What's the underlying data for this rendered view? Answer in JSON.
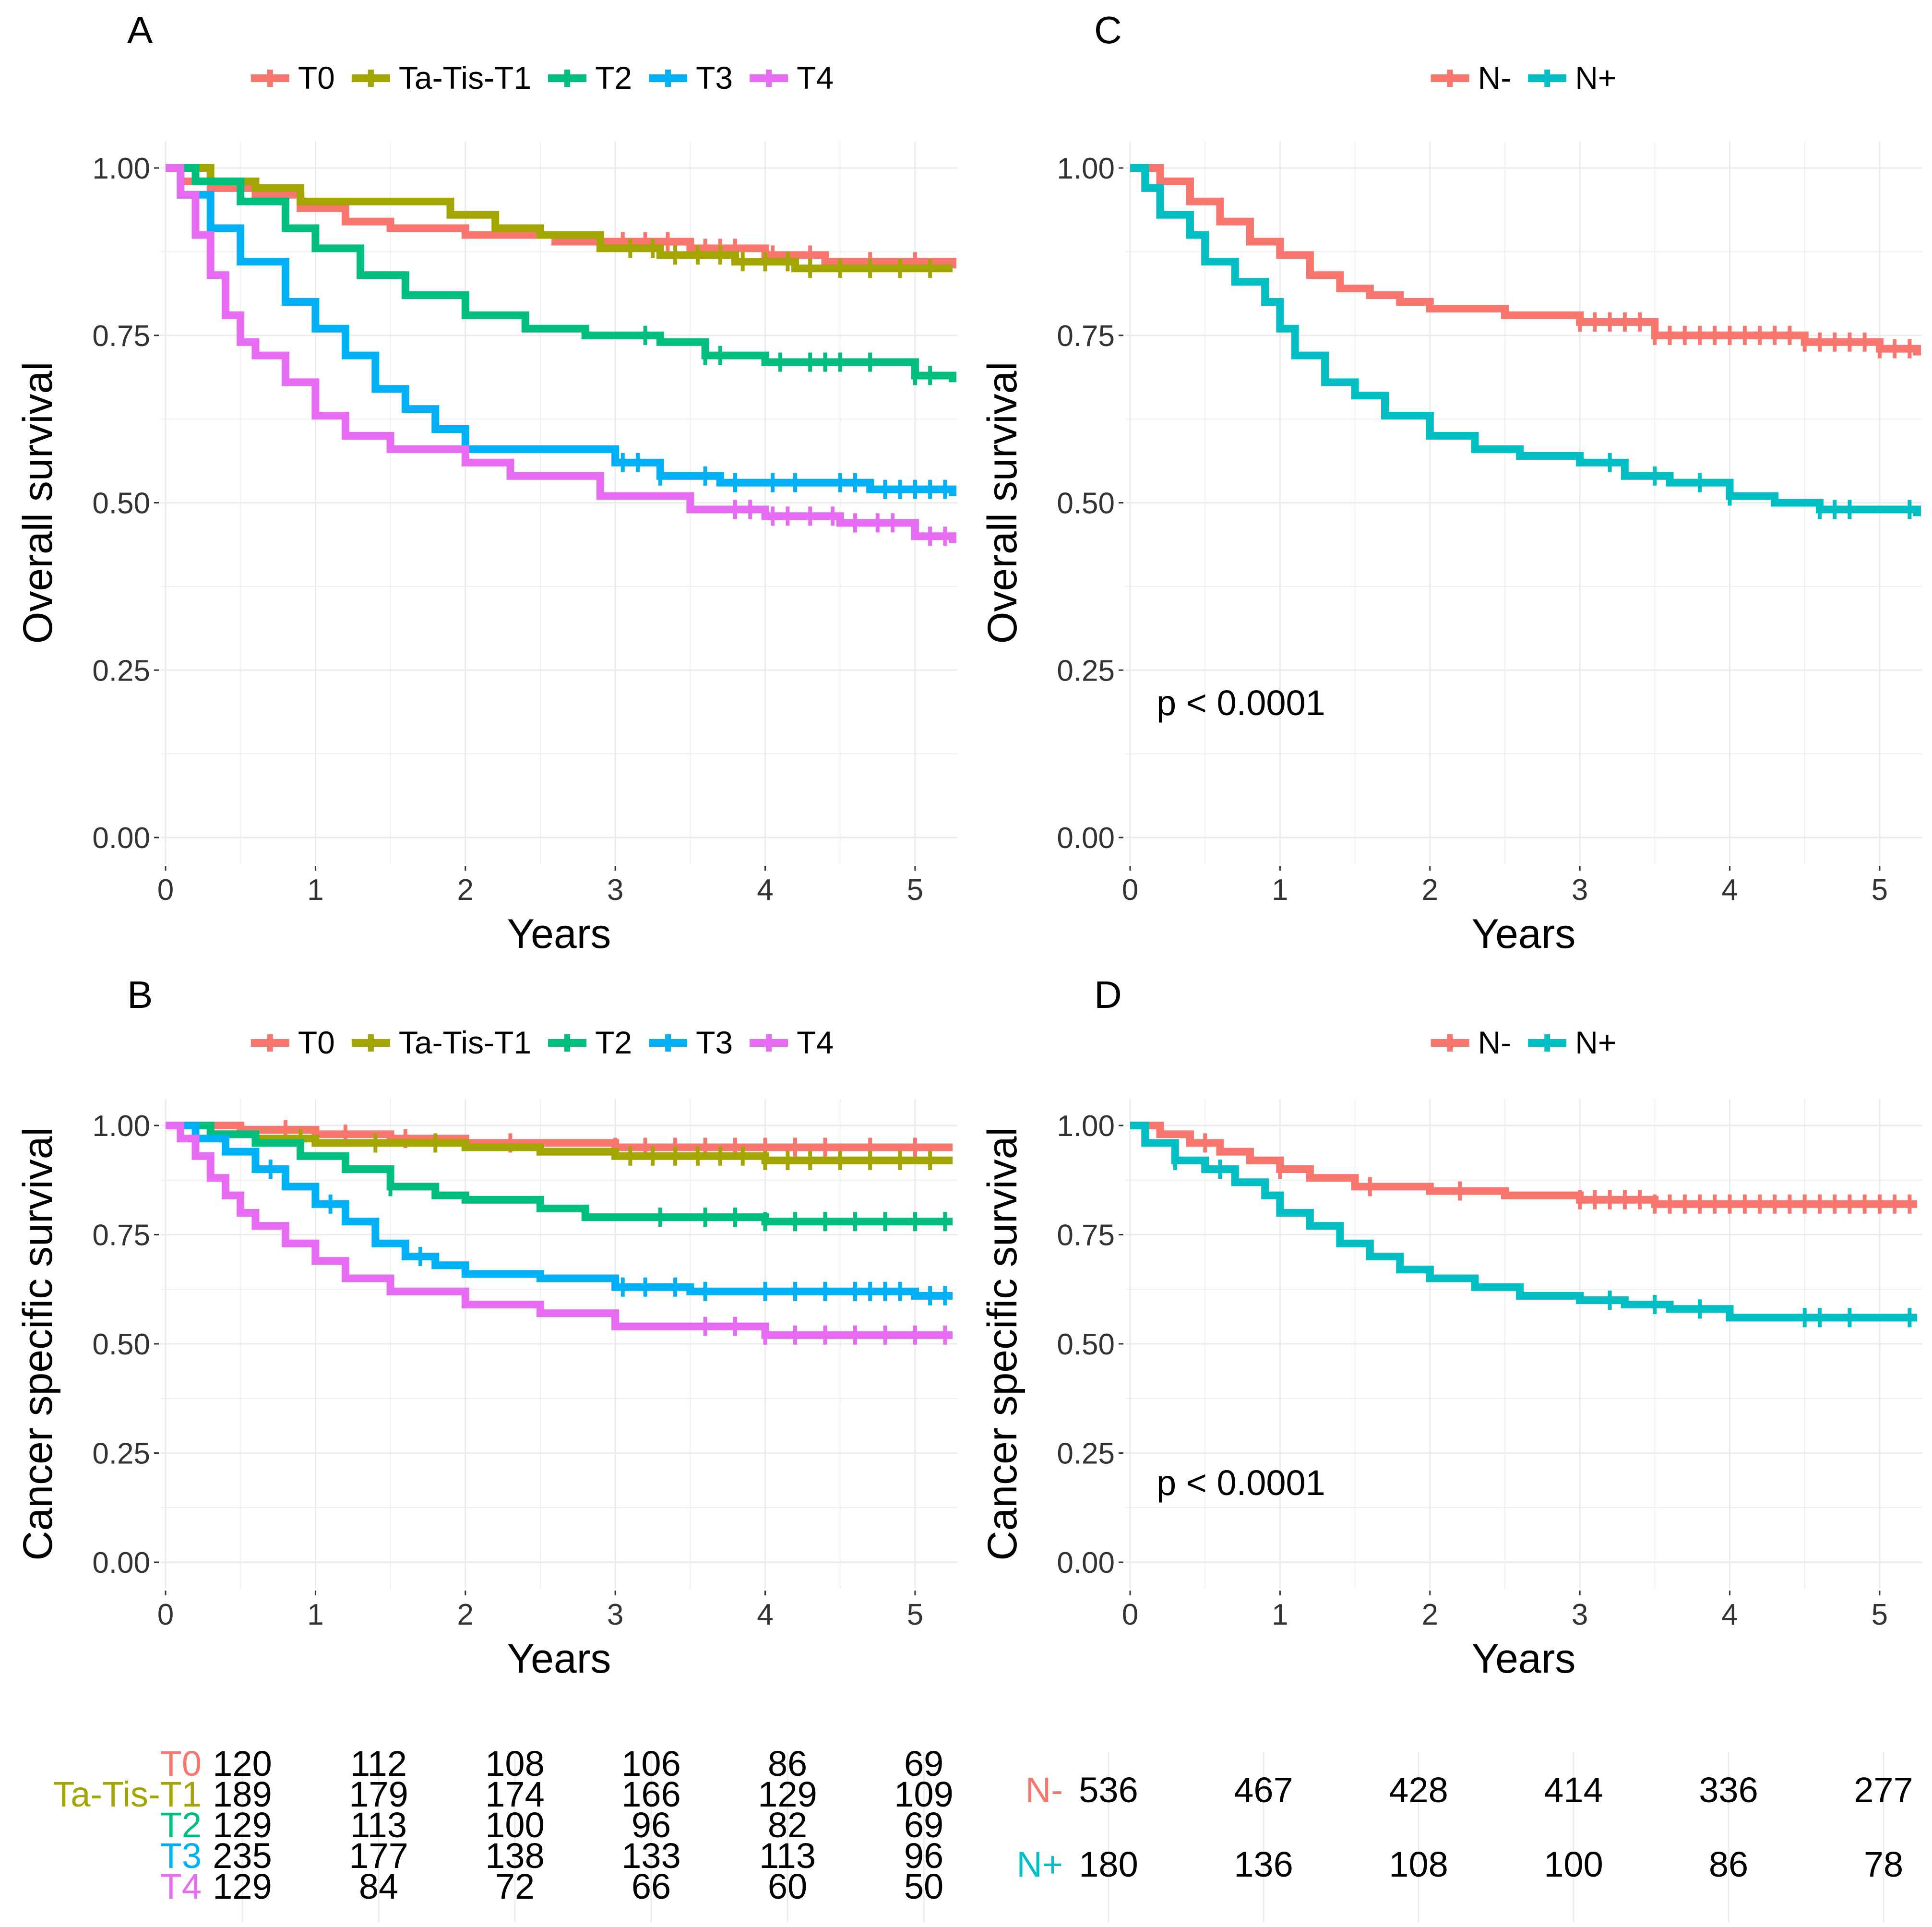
{
  "colors": {
    "T0": "#F8766D",
    "Ta-Tis-T1": "#A3A500",
    "T2": "#00BF7D",
    "T3": "#00B0F6",
    "T4": "#E76BF3",
    "N-": "#F8766D",
    "N+": "#00BFC4",
    "grid": "#EBEBEB",
    "text": "#000000",
    "axis_text": "#333333"
  },
  "chart_data": [
    {
      "id": "A",
      "panel_label": "A",
      "type": "line",
      "subtype": "kaplan-meier",
      "xlabel": "Years",
      "ylabel": "Overall survival",
      "xlim": [
        0,
        5.25
      ],
      "ylim": [
        0,
        1
      ],
      "xticks": [
        "0",
        "1",
        "2",
        "3",
        "4",
        "5"
      ],
      "yticks": [
        "0.00",
        "0.25",
        "0.50",
        "0.75",
        "1.00"
      ],
      "legend": {
        "position": "top",
        "labels": [
          "T0",
          "Ta-Tis-T1",
          "T2",
          "T3",
          "T4"
        ]
      },
      "annotation": "",
      "series": [
        {
          "name": "T0",
          "color": "#F8766D",
          "x": [
            0,
            0.1,
            0.3,
            0.6,
            0.9,
            1.2,
            1.5,
            2.0,
            2.6,
            3.0,
            3.5,
            4.0,
            4.4,
            5.25
          ],
          "y": [
            1.0,
            0.98,
            0.97,
            0.96,
            0.94,
            0.92,
            0.91,
            0.9,
            0.89,
            0.89,
            0.88,
            0.87,
            0.86,
            0.85
          ],
          "censor_x": [
            3.05,
            3.2,
            3.35,
            3.5,
            3.6,
            3.7,
            3.8,
            4.05,
            4.3,
            4.7,
            5.0
          ]
        },
        {
          "name": "Ta-Tis-T1",
          "color": "#A3A500",
          "x": [
            0,
            0.3,
            0.6,
            0.9,
            1.5,
            1.9,
            2.2,
            2.5,
            2.9,
            3.3,
            3.8,
            4.2,
            4.6,
            5.25
          ],
          "y": [
            1.0,
            0.98,
            0.97,
            0.95,
            0.95,
            0.93,
            0.91,
            0.9,
            0.88,
            0.87,
            0.86,
            0.85,
            0.85,
            0.85
          ],
          "censor_x": [
            3.1,
            3.25,
            3.4,
            3.55,
            3.7,
            3.85,
            4.0,
            4.15,
            4.3,
            4.5,
            4.7,
            4.9,
            5.1
          ]
        },
        {
          "name": "T2",
          "color": "#00BF7D",
          "x": [
            0,
            0.2,
            0.5,
            0.8,
            1.0,
            1.3,
            1.6,
            2.0,
            2.4,
            2.8,
            3.3,
            3.6,
            4.0,
            4.5,
            5.0,
            5.25
          ],
          "y": [
            1.0,
            0.98,
            0.95,
            0.91,
            0.88,
            0.84,
            0.81,
            0.78,
            0.76,
            0.75,
            0.74,
            0.72,
            0.71,
            0.71,
            0.69,
            0.68
          ],
          "censor_x": [
            3.2,
            3.6,
            3.7,
            4.1,
            4.3,
            4.4,
            4.5,
            4.7,
            5.0,
            5.1
          ]
        },
        {
          "name": "T3",
          "color": "#00B0F6",
          "x": [
            0,
            0.1,
            0.3,
            0.5,
            0.8,
            1.0,
            1.2,
            1.4,
            1.6,
            1.8,
            2.0,
            2.5,
            3.0,
            3.3,
            3.7,
            4.2,
            4.7,
            5.25
          ],
          "y": [
            1.0,
            0.96,
            0.91,
            0.86,
            0.8,
            0.76,
            0.72,
            0.67,
            0.64,
            0.61,
            0.58,
            0.58,
            0.56,
            0.54,
            0.53,
            0.53,
            0.52,
            0.51
          ],
          "censor_x": [
            3.05,
            3.15,
            3.3,
            3.6,
            3.8,
            4.05,
            4.2,
            4.5,
            4.6,
            4.8,
            4.9,
            5.0,
            5.1,
            5.2
          ]
        },
        {
          "name": "T4",
          "color": "#E76BF3",
          "x": [
            0,
            0.1,
            0.2,
            0.3,
            0.4,
            0.5,
            0.6,
            0.8,
            1.0,
            1.2,
            1.5,
            2.0,
            2.3,
            2.9,
            3.5,
            4.0,
            4.5,
            5.0,
            5.25
          ],
          "y": [
            1.0,
            0.96,
            0.9,
            0.84,
            0.78,
            0.74,
            0.72,
            0.68,
            0.63,
            0.6,
            0.58,
            0.56,
            0.54,
            0.51,
            0.49,
            0.48,
            0.47,
            0.45,
            0.44
          ],
          "censor_x": [
            3.8,
            3.9,
            4.05,
            4.15,
            4.3,
            4.45,
            4.6,
            4.75,
            4.85,
            5.1,
            5.2
          ]
        }
      ]
    },
    {
      "id": "C",
      "panel_label": "C",
      "type": "line",
      "subtype": "kaplan-meier",
      "xlabel": "Years",
      "ylabel": "Overall survival",
      "xlim": [
        0,
        5.25
      ],
      "ylim": [
        0,
        1
      ],
      "xticks": [
        "0",
        "1",
        "2",
        "3",
        "4",
        "5"
      ],
      "yticks": [
        "0.00",
        "0.25",
        "0.50",
        "0.75",
        "1.00"
      ],
      "legend": {
        "position": "top",
        "labels": [
          "N-",
          "N+"
        ]
      },
      "annotation": "p < 0.0001",
      "series": [
        {
          "name": "N-",
          "color": "#F8766D",
          "x": [
            0,
            0.2,
            0.4,
            0.6,
            0.8,
            1.0,
            1.2,
            1.4,
            1.6,
            1.8,
            2.0,
            2.5,
            3.0,
            3.5,
            4.0,
            4.5,
            5.0,
            5.25
          ],
          "y": [
            1.0,
            0.98,
            0.95,
            0.92,
            0.89,
            0.87,
            0.84,
            0.82,
            0.81,
            0.8,
            0.79,
            0.78,
            0.77,
            0.75,
            0.75,
            0.74,
            0.73,
            0.72
          ],
          "censor_x": [
            3.0,
            3.1,
            3.2,
            3.3,
            3.4,
            3.5,
            3.6,
            3.7,
            3.8,
            3.9,
            4.0,
            4.1,
            4.2,
            4.3,
            4.4,
            4.5,
            4.6,
            4.7,
            4.8,
            4.9,
            5.0,
            5.1,
            5.2
          ]
        },
        {
          "name": "N+",
          "color": "#00BFC4",
          "x": [
            0,
            0.1,
            0.2,
            0.4,
            0.5,
            0.7,
            0.9,
            1.0,
            1.1,
            1.3,
            1.5,
            1.7,
            2.0,
            2.3,
            2.6,
            3.0,
            3.3,
            3.6,
            4.0,
            4.3,
            4.6,
            5.0,
            5.25
          ],
          "y": [
            1.0,
            0.97,
            0.93,
            0.9,
            0.86,
            0.83,
            0.8,
            0.76,
            0.72,
            0.68,
            0.66,
            0.63,
            0.6,
            0.58,
            0.57,
            0.56,
            0.54,
            0.53,
            0.51,
            0.5,
            0.49,
            0.49,
            0.48
          ],
          "censor_x": [
            3.2,
            3.5,
            3.8,
            4.0,
            4.6,
            4.7,
            4.8,
            5.2
          ]
        }
      ]
    },
    {
      "id": "B",
      "panel_label": "B",
      "type": "line",
      "subtype": "kaplan-meier",
      "xlabel": "Years",
      "ylabel": "Cancer specific survival",
      "xlim": [
        0,
        5.25
      ],
      "ylim": [
        0,
        1
      ],
      "xticks": [
        "0",
        "1",
        "2",
        "3",
        "4",
        "5"
      ],
      "yticks": [
        "0.00",
        "0.25",
        "0.50",
        "0.75",
        "1.00"
      ],
      "legend": {
        "position": "top",
        "labels": [
          "T0",
          "Ta-Tis-T1",
          "T2",
          "T3",
          "T4"
        ]
      },
      "annotation": "",
      "series": [
        {
          "name": "T0",
          "color": "#F8766D",
          "x": [
            0,
            0.5,
            1.0,
            1.5,
            2.0,
            2.5,
            3.0,
            4.0,
            5.25
          ],
          "y": [
            1.0,
            0.99,
            0.98,
            0.97,
            0.96,
            0.96,
            0.95,
            0.95,
            0.95
          ],
          "censor_x": [
            0.8,
            1.2,
            1.6,
            2.3,
            3.0,
            3.2,
            3.4,
            3.6,
            3.8,
            4.0,
            4.2,
            4.4,
            4.7,
            5.0
          ]
        },
        {
          "name": "Ta-Tis-T1",
          "color": "#A3A500",
          "x": [
            0,
            0.3,
            0.6,
            1.0,
            1.5,
            2.0,
            2.5,
            3.0,
            3.5,
            4.0,
            4.5,
            5.25
          ],
          "y": [
            1.0,
            0.98,
            0.97,
            0.96,
            0.96,
            0.95,
            0.94,
            0.93,
            0.93,
            0.92,
            0.92,
            0.92
          ],
          "censor_x": [
            0.9,
            1.4,
            1.8,
            3.1,
            3.25,
            3.4,
            3.55,
            3.7,
            3.85,
            4.0,
            4.15,
            4.3,
            4.5,
            4.7,
            4.9,
            5.1
          ]
        },
        {
          "name": "T2",
          "color": "#00BF7D",
          "x": [
            0,
            0.3,
            0.6,
            0.9,
            1.2,
            1.5,
            1.8,
            2.0,
            2.5,
            2.8,
            3.0,
            4.0,
            5.25
          ],
          "y": [
            1.0,
            0.98,
            0.96,
            0.93,
            0.9,
            0.86,
            0.84,
            0.83,
            0.81,
            0.79,
            0.79,
            0.78,
            0.78
          ],
          "censor_x": [
            1.5,
            3.3,
            3.6,
            3.8,
            4.0,
            4.2,
            4.4,
            4.6,
            4.8,
            5.0,
            5.2
          ]
        },
        {
          "name": "T3",
          "color": "#00B0F6",
          "x": [
            0,
            0.2,
            0.4,
            0.6,
            0.8,
            1.0,
            1.2,
            1.4,
            1.6,
            1.8,
            2.0,
            2.5,
            3.0,
            3.5,
            4.0,
            5.0,
            5.25
          ],
          "y": [
            1.0,
            0.97,
            0.94,
            0.9,
            0.86,
            0.82,
            0.78,
            0.73,
            0.7,
            0.68,
            0.66,
            0.65,
            0.63,
            0.62,
            0.62,
            0.61,
            0.61
          ],
          "censor_x": [
            0.7,
            1.1,
            1.7,
            3.05,
            3.2,
            3.4,
            3.6,
            4.0,
            4.2,
            4.4,
            4.6,
            4.7,
            4.8,
            4.9,
            5.1,
            5.2
          ]
        },
        {
          "name": "T4",
          "color": "#E76BF3",
          "x": [
            0,
            0.1,
            0.2,
            0.3,
            0.4,
            0.5,
            0.6,
            0.8,
            1.0,
            1.2,
            1.5,
            2.0,
            2.5,
            3.0,
            4.0,
            5.25
          ],
          "y": [
            1.0,
            0.97,
            0.93,
            0.88,
            0.84,
            0.8,
            0.77,
            0.73,
            0.69,
            0.65,
            0.62,
            0.59,
            0.57,
            0.54,
            0.52,
            0.52
          ],
          "censor_x": [
            3.6,
            3.8,
            4.0,
            4.2,
            4.4,
            4.6,
            4.8,
            5.0,
            5.2
          ]
        }
      ]
    },
    {
      "id": "D",
      "panel_label": "D",
      "type": "line",
      "subtype": "kaplan-meier",
      "xlabel": "Years",
      "ylabel": "Cancer specific survival",
      "xlim": [
        0,
        5.25
      ],
      "ylim": [
        0,
        1
      ],
      "xticks": [
        "0",
        "1",
        "2",
        "3",
        "4",
        "5"
      ],
      "yticks": [
        "0.00",
        "0.25",
        "0.50",
        "0.75",
        "1.00"
      ],
      "legend": {
        "position": "top",
        "labels": [
          "N-",
          "N+"
        ]
      },
      "annotation": "p < 0.0001",
      "series": [
        {
          "name": "N-",
          "color": "#F8766D",
          "x": [
            0,
            0.2,
            0.4,
            0.6,
            0.8,
            1.0,
            1.2,
            1.5,
            2.0,
            2.5,
            3.0,
            3.5,
            4.0,
            5.0,
            5.25
          ],
          "y": [
            1.0,
            0.98,
            0.96,
            0.94,
            0.92,
            0.9,
            0.88,
            0.86,
            0.85,
            0.84,
            0.83,
            0.82,
            0.82,
            0.82,
            0.82
          ],
          "censor_x": [
            0.5,
            1.0,
            1.6,
            2.2,
            3.0,
            3.1,
            3.2,
            3.3,
            3.4,
            3.5,
            3.6,
            3.7,
            3.8,
            3.9,
            4.0,
            4.1,
            4.2,
            4.3,
            4.4,
            4.5,
            4.6,
            4.7,
            4.8,
            4.9,
            5.0,
            5.1,
            5.2
          ]
        },
        {
          "name": "N+",
          "color": "#00BFC4",
          "x": [
            0,
            0.1,
            0.3,
            0.5,
            0.7,
            0.9,
            1.0,
            1.2,
            1.4,
            1.6,
            1.8,
            2.0,
            2.3,
            2.6,
            3.0,
            3.3,
            3.6,
            4.0,
            5.25
          ],
          "y": [
            1.0,
            0.96,
            0.92,
            0.9,
            0.87,
            0.84,
            0.8,
            0.77,
            0.73,
            0.7,
            0.67,
            0.65,
            0.63,
            0.61,
            0.6,
            0.59,
            0.58,
            0.56,
            0.56
          ],
          "censor_x": [
            0.3,
            0.6,
            3.2,
            3.5,
            3.8,
            4.5,
            4.6,
            4.8,
            5.2
          ]
        }
      ]
    }
  ],
  "risk_tables": [
    {
      "id": "left",
      "rows": [
        {
          "label": "T0",
          "color": "#F8766D",
          "values": [
            "120",
            "112",
            "108",
            "106",
            "86",
            "69"
          ]
        },
        {
          "label": "Ta-Tis-T1",
          "color": "#A3A500",
          "values": [
            "189",
            "179",
            "174",
            "166",
            "129",
            "109"
          ]
        },
        {
          "label": "T2",
          "color": "#00BF7D",
          "values": [
            "129",
            "113",
            "100",
            "96",
            "82",
            "69"
          ]
        },
        {
          "label": "T3",
          "color": "#00B0F6",
          "values": [
            "235",
            "177",
            "138",
            "133",
            "113",
            "96"
          ]
        },
        {
          "label": "T4",
          "color": "#E76BF3",
          "values": [
            "129",
            "84",
            "72",
            "66",
            "60",
            "50"
          ]
        }
      ]
    },
    {
      "id": "right",
      "rows": [
        {
          "label": "N-",
          "color": "#F8766D",
          "values": [
            "536",
            "467",
            "428",
            "414",
            "336",
            "277"
          ]
        },
        {
          "label": "N+",
          "color": "#00BFC4",
          "values": [
            "180",
            "136",
            "108",
            "100",
            "86",
            "78"
          ]
        }
      ]
    }
  ]
}
